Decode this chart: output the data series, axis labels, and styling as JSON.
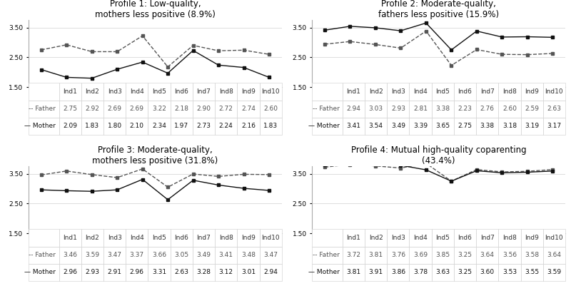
{
  "profiles": [
    {
      "title": "Profile 1: Low-quality,\nmothers less positive (8.9%)",
      "father": [
        2.75,
        2.92,
        2.69,
        2.69,
        3.22,
        2.18,
        2.9,
        2.72,
        2.74,
        2.6
      ],
      "mother": [
        2.09,
        1.83,
        1.8,
        2.1,
        2.34,
        1.97,
        2.73,
        2.24,
        2.16,
        1.83
      ]
    },
    {
      "title": "Profile 2: Moderate-quality,\nfathers less positive (15.9%)",
      "father": [
        2.94,
        3.03,
        2.93,
        2.81,
        3.38,
        2.23,
        2.76,
        2.6,
        2.59,
        2.63
      ],
      "mother": [
        3.41,
        3.54,
        3.49,
        3.39,
        3.65,
        2.75,
        3.38,
        3.18,
        3.19,
        3.17
      ]
    },
    {
      "title": "Profile 3: Moderate-quality,\nmothers less positive (31.8%)",
      "father": [
        3.46,
        3.59,
        3.47,
        3.37,
        3.66,
        3.05,
        3.49,
        3.41,
        3.48,
        3.47
      ],
      "mother": [
        2.96,
        2.93,
        2.91,
        2.96,
        3.31,
        2.63,
        3.28,
        3.12,
        3.01,
        2.94
      ]
    },
    {
      "title": "Profile 4: Mutual high-quality coparenting\n(43.4%)",
      "father": [
        3.72,
        3.81,
        3.76,
        3.69,
        3.85,
        3.25,
        3.64,
        3.56,
        3.58,
        3.64
      ],
      "mother": [
        3.81,
        3.91,
        3.86,
        3.78,
        3.63,
        3.25,
        3.6,
        3.53,
        3.55,
        3.59
      ]
    }
  ],
  "x_labels": [
    "Ind1",
    "Ind2",
    "Ind3",
    "Ind4",
    "Ind5",
    "Ind6",
    "Ind7",
    "Ind8",
    "Ind9",
    "Ind10"
  ],
  "ylim": [
    1.5,
    3.75
  ],
  "yticks": [
    1.5,
    2.5,
    3.5
  ],
  "father_color": "#555555",
  "mother_color": "#111111",
  "background_color": "#ffffff",
  "title_fontsize": 8.5,
  "table_fontsize": 6.5,
  "father_label": "-- Father",
  "mother_label": "— Mother"
}
